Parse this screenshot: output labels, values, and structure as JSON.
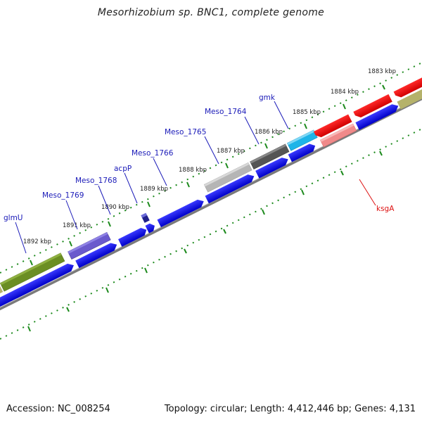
{
  "title": "Mesorhizobium sp. BNC1, complete genome",
  "footer": {
    "accession": "Accession: NC_008254",
    "summary": "Topology: circular; Length: 4,412,446 bp; Genes: 4,131"
  },
  "colors": {
    "blue_cds": "#1010e0",
    "red_cds": "#ee0a0a",
    "tick_green": "#1c8a1c",
    "backbone": "#7a7a7a",
    "label_blue": "#1a1ab8",
    "label_red": "#dd1111"
  },
  "scale_labels": [
    "1883 kbp",
    "1884 kbp",
    "1885 kbp",
    "1886 kbp",
    "1887 kbp",
    "1888 kbp",
    "1889 kbp",
    "1890 kbp",
    "1891 kbp",
    "1892 kbp"
  ],
  "gene_labels": [
    {
      "text": "gmk",
      "color": "blue"
    },
    {
      "text": "Meso_1764",
      "color": "blue"
    },
    {
      "text": "Meso_1765",
      "color": "blue"
    },
    {
      "text": "Meso_1766",
      "color": "blue"
    },
    {
      "text": "acpP",
      "color": "blue"
    },
    {
      "text": "Meso_1768",
      "color": "blue"
    },
    {
      "text": "Meso_1769",
      "color": "blue"
    },
    {
      "text": "glmU",
      "color": "blue"
    },
    {
      "text": "ksgA",
      "color": "red"
    }
  ]
}
